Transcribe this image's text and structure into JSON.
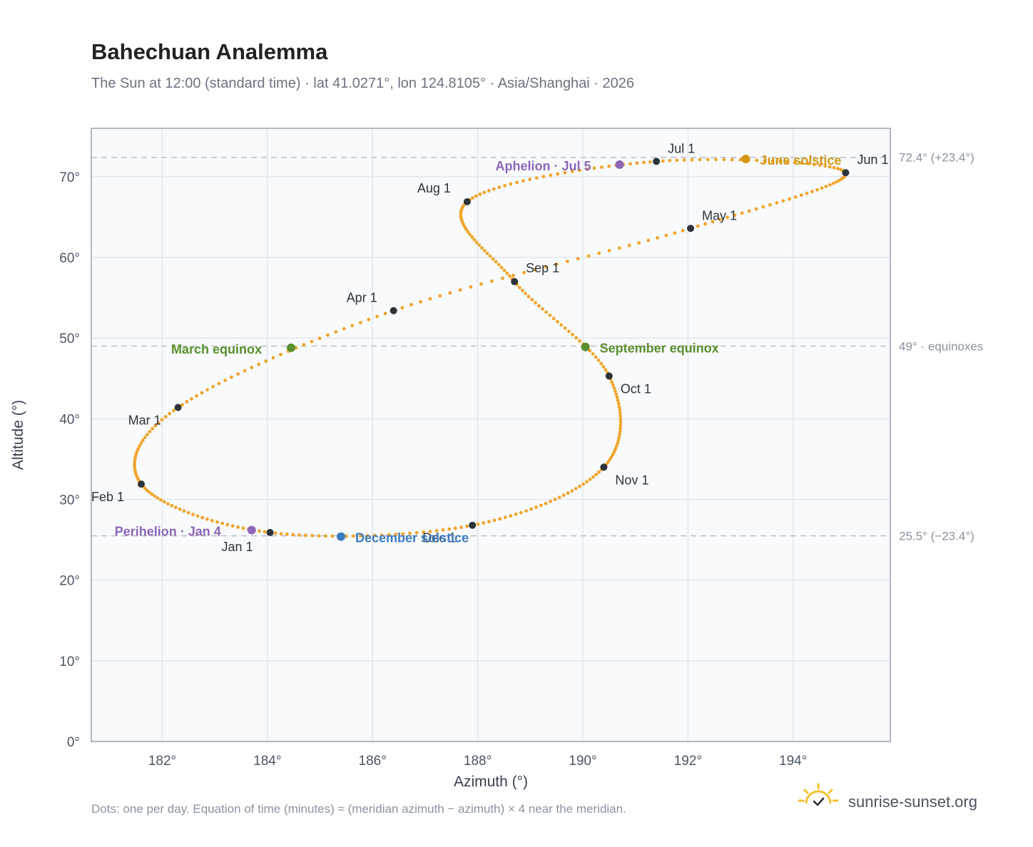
{
  "chart_data": {
    "type": "scatter",
    "title": "Bahechuan Analemma",
    "subtitle": "The Sun at 12:00 (standard time) · lat 41.0271°, lon 124.8105° · Asia/Shanghai · 2026",
    "xlabel": "Azimuth (°)",
    "ylabel": "Altitude (°)",
    "xlim": [
      180.65,
      195.85
    ],
    "ylim": [
      0,
      76
    ],
    "x_ticks": [
      "182°",
      "184°",
      "186°",
      "188°",
      "190°",
      "192°",
      "194°"
    ],
    "y_ticks": [
      "0°",
      "10°",
      "20°",
      "30°",
      "40°",
      "50°",
      "60°",
      "70°"
    ],
    "grid": true,
    "colors": {
      "path": "#f0a52a",
      "month_marker": "#2d333b",
      "equinox": "#5a8f2e",
      "june_solstice": "#d4960f",
      "december_solstice": "#3b7bbf",
      "apsis": "#8e67b8",
      "reference_line": "#b8c0ca",
      "plot_bg": "#f8fafc"
    },
    "reference_lines": [
      {
        "altitude": 72.4,
        "label": "72.4° (+23.4°)"
      },
      {
        "altitude": 49,
        "label": "49° · equinoxes"
      },
      {
        "altitude": 25.5,
        "label": "25.5° (−23.4°)"
      }
    ],
    "month_markers": [
      {
        "label": "Jan 1",
        "az": 184.05,
        "alt": 25.9
      },
      {
        "label": "Feb 1",
        "az": 181.6,
        "alt": 31.9
      },
      {
        "label": "Mar 1",
        "az": 182.3,
        "alt": 41.4
      },
      {
        "label": "Apr 1",
        "az": 186.4,
        "alt": 53.4
      },
      {
        "label": "May 1",
        "az": 192.05,
        "alt": 63.6
      },
      {
        "label": "Jun 1",
        "az": 195.0,
        "alt": 70.5
      },
      {
        "label": "Jul 1",
        "az": 191.4,
        "alt": 71.9
      },
      {
        "label": "Aug 1",
        "az": 187.8,
        "alt": 66.9
      },
      {
        "label": "Sep 1",
        "az": 188.7,
        "alt": 57.0
      },
      {
        "label": "Oct 1",
        "az": 190.5,
        "alt": 45.3
      },
      {
        "label": "Nov 1",
        "az": 190.4,
        "alt": 34.0
      },
      {
        "label": "Dec 1",
        "az": 187.9,
        "alt": 26.8
      }
    ],
    "events": [
      {
        "label": "March equinox",
        "az": 184.45,
        "alt": 48.8,
        "color": "#5a8f2e"
      },
      {
        "label": "September equinox",
        "az": 190.05,
        "alt": 48.9,
        "color": "#5a8f2e"
      },
      {
        "label": "June solstice",
        "az": 193.1,
        "alt": 72.2,
        "color": "#d4960f"
      },
      {
        "label": "December solstice",
        "az": 185.4,
        "alt": 25.4,
        "color": "#3b7bbf"
      },
      {
        "label": "Perihelion · Jan 4",
        "az": 183.7,
        "alt": 26.2,
        "color": "#8e67b8"
      },
      {
        "label": "Aphelion · Jul 5",
        "az": 190.7,
        "alt": 71.5,
        "color": "#8e67b8"
      }
    ]
  },
  "footnote": "Dots: one per day. Equation of time (minutes) ≈ (meridian azimuth − azimuth) × 4 near the meridian.",
  "brand": {
    "name": "sunrise-sunset.org",
    "icon": "sun-logo-icon"
  }
}
